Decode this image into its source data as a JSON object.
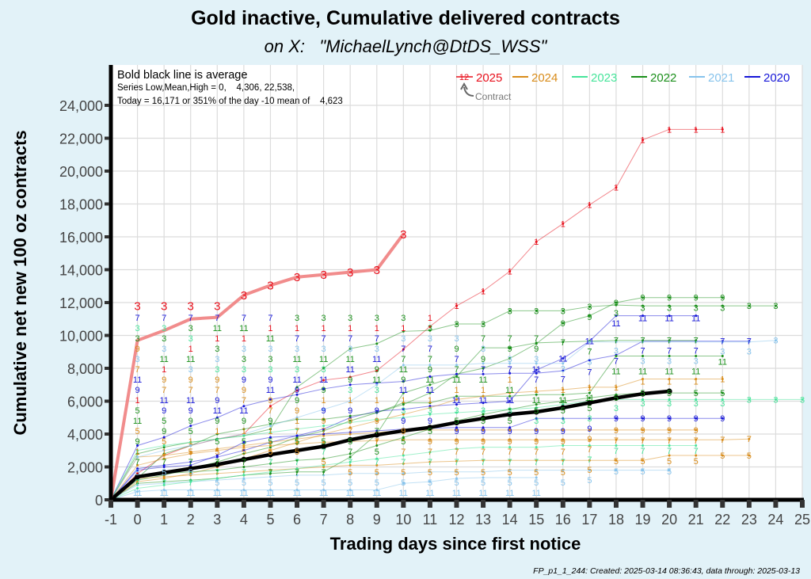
{
  "chart_data": {
    "type": "line",
    "title": "Gold inactive, Cumulative delivered contracts",
    "subtitle": "on X:   \"MichaelLynch@DtDS_WSS\"",
    "xlabel": "Trading days since first notice",
    "ylabel": "Cumulative net new 100 oz contracts",
    "xlim": [
      -1,
      25
    ],
    "ylim": [
      0,
      24000
    ],
    "x_ticks": [
      "-1",
      "0",
      "1",
      "2",
      "3",
      "4",
      "5",
      "6",
      "7",
      "8",
      "9",
      "10",
      "11",
      "12",
      "13",
      "14",
      "15",
      "16",
      "17",
      "18",
      "19",
      "20",
      "21",
      "22",
      "23",
      "24",
      "25"
    ],
    "y_ticks": [
      "0",
      "2,000",
      "4,000",
      "6,000",
      "8,000",
      "10,000",
      "12,000",
      "14,000",
      "16,000",
      "18,000",
      "20,000",
      "22,000",
      "24,000"
    ],
    "grid": true,
    "info": {
      "line1": "Bold black line is average",
      "line2": "Series Low,Mean,High = 0,    4,306, 22,538,",
      "line3": "Today = 16,171 or 351% of the day -10 mean of    4,623"
    },
    "legend": {
      "placement": "top-right",
      "sample_label": "12",
      "contract_note": "Contract",
      "entries": [
        {
          "label": "2025",
          "color": "#e8101c"
        },
        {
          "label": "2024",
          "color": "#d98c1a"
        },
        {
          "label": "2023",
          "color": "#46e49a"
        },
        {
          "label": "2022",
          "color": "#1a8f1a"
        },
        {
          "label": "2021",
          "color": "#86c3ec"
        },
        {
          "label": "2020",
          "color": "#1515d8"
        }
      ]
    },
    "x_start": -1,
    "average": {
      "color": "#000000",
      "values": [
        0,
        1400,
        1650,
        1900,
        2150,
        2450,
        2750,
        3000,
        3250,
        3650,
        3950,
        4200,
        4400,
        4700,
        4950,
        5200,
        5350,
        5600,
        5900,
        6200,
        6450,
        6600
      ]
    },
    "current": {
      "year": "2025",
      "contract": "3",
      "color": "#f08080",
      "values": [
        0,
        9700,
        10300,
        11000,
        11100,
        12450,
        13050,
        13550,
        13700,
        13850,
        14000,
        16171
      ]
    },
    "series": [
      {
        "year": "2025",
        "contract": "1",
        "values": [
          0,
          1600,
          2700,
          3300,
          3700,
          4000,
          5700,
          6650,
          7280,
          7470,
          7860,
          9150,
          10550,
          11800,
          12700,
          13900,
          15700,
          16800,
          17950,
          19000,
          21900,
          22538,
          22538,
          22538
        ]
      },
      {
        "year": "2022",
        "contract": "3",
        "values": [
          0,
          2800,
          3200,
          3500,
          3700,
          3900,
          4300,
          6850,
          8000,
          9200,
          9500,
          10250,
          10300,
          10700,
          10700,
          11500,
          11500,
          11500,
          11750,
          11850,
          11800,
          11800,
          11800,
          11800,
          11800,
          11800
        ]
      },
      {
        "year": "2022",
        "contract": "9",
        "values": [
          0,
          1200,
          1500,
          1900,
          2300,
          2800,
          3200,
          3800,
          4200,
          4800,
          5300,
          5800,
          6500,
          7650,
          8000,
          8600,
          9500,
          10750,
          11200,
          12000,
          12300,
          12300,
          12300,
          12300
        ]
      },
      {
        "year": "2020",
        "contract": "11",
        "values": [
          0,
          1900,
          2100,
          2300,
          2600,
          3000,
          3500,
          3900,
          4300,
          5000,
          5400,
          5500,
          5700,
          5800,
          5900,
          6000,
          7900,
          8600,
          9650,
          11200,
          11200,
          11200,
          11200
        ]
      },
      {
        "year": "2020",
        "contract": "7",
        "values": [
          0,
          3300,
          3800,
          4500,
          5000,
          5700,
          6100,
          6400,
          6750,
          7000,
          7100,
          7200,
          7500,
          7650,
          7650,
          7700,
          7700,
          7850,
          8500,
          8800,
          9650,
          9650,
          9650,
          9650,
          9650
        ]
      },
      {
        "year": "2022",
        "contract": "7",
        "values": [
          0,
          1000,
          1100,
          1200,
          1300,
          1500,
          1600,
          1700,
          1700,
          2600,
          4000,
          6500,
          7000,
          7500,
          9250,
          9250,
          9550,
          9600,
          9650,
          9700,
          9700,
          9700,
          9700
        ]
      },
      {
        "year": "2022",
        "contract": "11",
        "values": [
          0,
          1300,
          2800,
          3300,
          4000,
          4300,
          4600,
          4900,
          4900,
          5100,
          5300,
          5900,
          5900,
          6300,
          6300,
          6300,
          6400,
          6400,
          6500,
          8750,
          8750,
          8750,
          8750,
          8750
        ]
      },
      {
        "year": "2024",
        "contract": "1",
        "values": [
          0,
          1100,
          1300,
          1600,
          2000,
          2500,
          3000,
          3500,
          4000,
          4400,
          4800,
          5200,
          5600,
          6100,
          6300,
          6500,
          6600,
          6700,
          6850,
          6850,
          7350,
          7350,
          7350,
          7350
        ]
      },
      {
        "year": "2024",
        "contract": "7",
        "values": [
          0,
          2100,
          2500,
          2800,
          3000,
          3200,
          3300,
          3400,
          3500,
          3550,
          3600,
          3650,
          3650,
          3650,
          3650,
          3650,
          3650,
          3650,
          3650,
          3650,
          3650,
          3650,
          3650,
          3650,
          3700
        ]
      },
      {
        "year": "2024",
        "contract": "9",
        "values": [
          0,
          2600,
          2700,
          2900,
          3100,
          3300,
          3500,
          3700,
          3900,
          4000,
          4100,
          4200,
          4250,
          4250,
          4250,
          4250,
          4250,
          4250,
          4250,
          4250,
          4250,
          4250,
          4250
        ]
      },
      {
        "year": "2024",
        "contract": "5",
        "values": [
          0,
          1300,
          1400,
          1500,
          1600,
          1700,
          1800,
          1900,
          2000,
          2100,
          2100,
          2200,
          2300,
          2350,
          2400,
          2400,
          2400,
          2400,
          2400,
          2400,
          2400,
          2700,
          2700,
          2700,
          2700
        ]
      },
      {
        "year": "2021",
        "contract": "3",
        "values": [
          0,
          2600,
          3000,
          3300,
          3700,
          4000,
          4500,
          5000,
          5500,
          6000,
          7000,
          8200,
          8200,
          8200,
          8300,
          8300,
          8300,
          8300,
          9600,
          9600,
          9600,
          9600,
          9600,
          9600,
          9600,
          9700
        ]
      },
      {
        "year": "2021",
        "contract": "5",
        "values": [
          0,
          900,
          1000,
          1100,
          1200,
          1300,
          1400,
          1500,
          1500,
          1600,
          1600,
          1600,
          1700,
          1700,
          1700,
          1800,
          1800,
          1800,
          1800,
          1800,
          1800,
          1800
        ]
      },
      {
        "year": "2021",
        "contract": "11",
        "values": [
          0,
          500,
          600,
          600,
          600,
          600,
          600,
          600,
          600,
          600,
          600,
          1000,
          1100,
          1300,
          1350,
          1350,
          1350
        ]
      },
      {
        "year": "2023",
        "contract": "3",
        "values": [
          0,
          3000,
          3300,
          3500,
          3700,
          3900,
          4100,
          4300,
          4500,
          4700,
          4900,
          5000,
          5200,
          5300,
          5400,
          5500,
          5600,
          5800,
          6000,
          6100,
          6100,
          6100,
          6100,
          6100,
          6100,
          6100,
          6100
        ]
      },
      {
        "year": "2022",
        "contract": "5",
        "values": [
          0,
          1500,
          1600,
          1700,
          1800,
          2000,
          2200,
          2400,
          2500,
          2800,
          3300,
          3800,
          4300,
          4800,
          5200,
          5500,
          5800,
          6000,
          6200,
          6400,
          6500,
          6500,
          6500,
          6500
        ]
      },
      {
        "year": "2020",
        "contract": "9",
        "values": [
          0,
          1800,
          2000,
          2100,
          2700,
          3500,
          3800,
          3900,
          4000,
          4100,
          4200,
          4300,
          4350,
          4400,
          4400,
          4400,
          4950,
          4950,
          4950,
          4950,
          4950,
          4950,
          4950,
          4950
        ]
      },
      {
        "year": "2023",
        "contract": "7",
        "values": [
          0,
          700,
          900,
          1100,
          1300,
          1500,
          1700,
          1900,
          2100,
          2300,
          2500,
          2700,
          2900,
          3100,
          3200,
          3200,
          3200,
          3300,
          3300,
          3300,
          3300,
          3300,
          3300
        ]
      }
    ]
  },
  "footer": "FP_p1_1_244: Created: 2025-03-14 08:36:43, data through: 2025-03-13"
}
